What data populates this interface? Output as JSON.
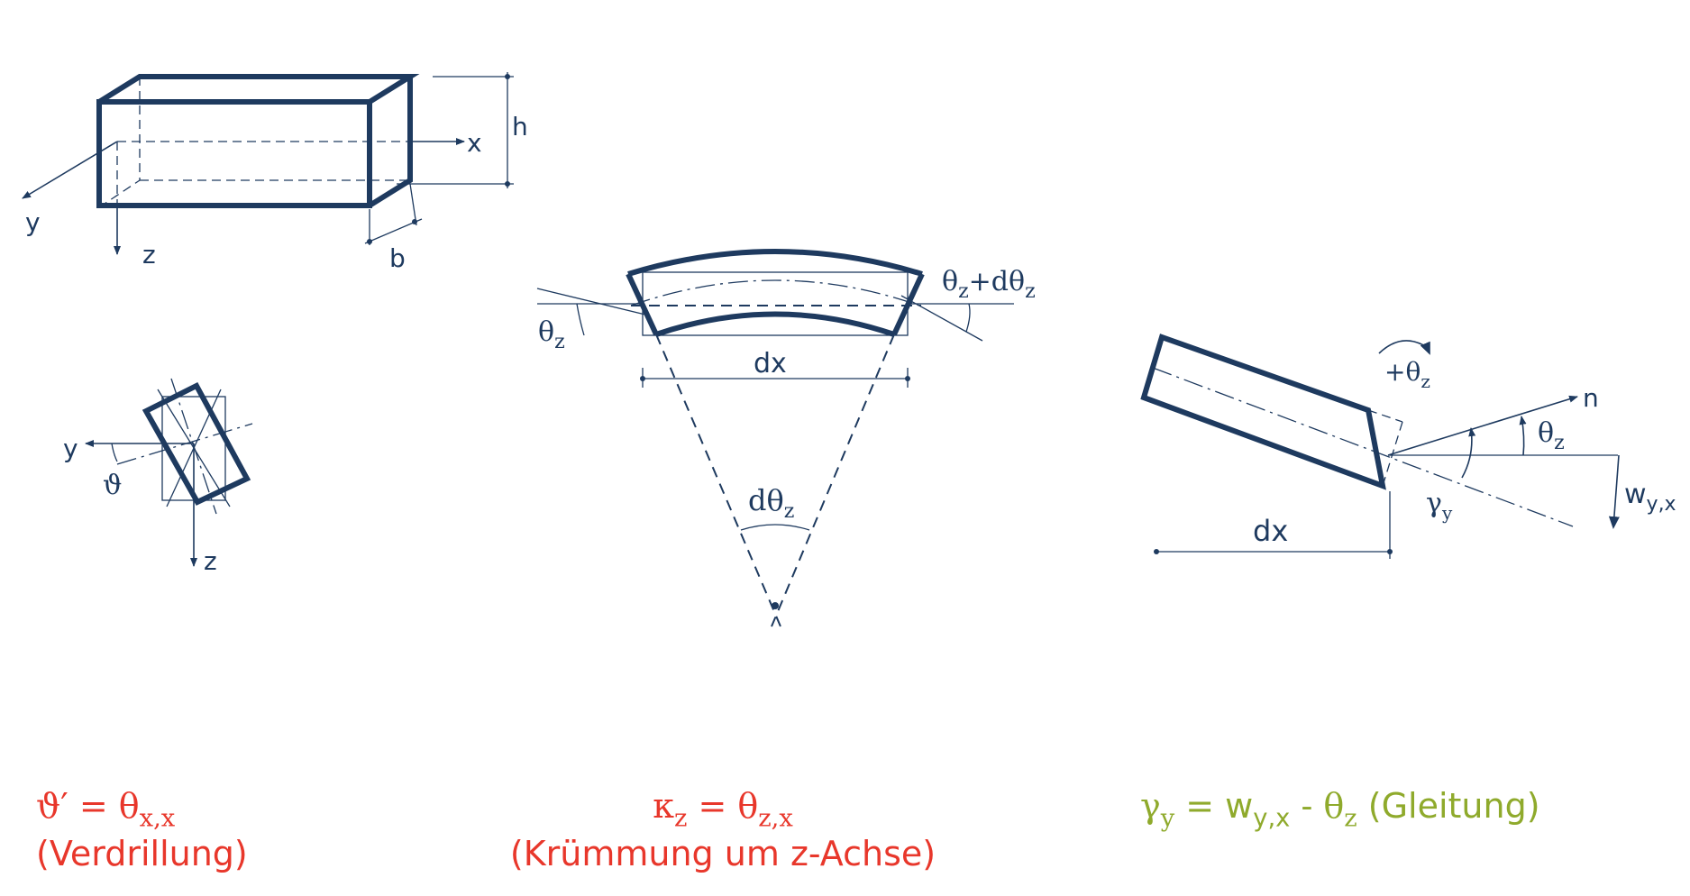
{
  "diagram_labels": {
    "beam": {
      "x": "x",
      "y": "y",
      "z": "z",
      "h": "h",
      "b": "b"
    },
    "cross_section": {
      "y": "y",
      "z": "z",
      "angle": "ϑ"
    },
    "curvature": {
      "theta_left": "θ",
      "theta_left_sub": "z",
      "theta_right": "θ",
      "theta_right_sub": "z",
      "plus": "+dθ",
      "plus_sub": "z",
      "dx": "dx",
      "dtheta": "dθ",
      "dtheta_sub": "z"
    },
    "shear": {
      "rotation": "+θ",
      "rotation_sub": "z",
      "n": "n",
      "theta": "θ",
      "theta_sub": "z",
      "gamma": "γ",
      "gamma_sub": "y",
      "w": "w",
      "w_sub": "y,x",
      "dx": "dx"
    }
  },
  "formulas": {
    "torsion": {
      "lhs": "ϑ′ = θ",
      "sub": "x,x",
      "caption": "(Verdrillung)"
    },
    "curvature": {
      "lhs": "κ",
      "lhs_sub": "z",
      "eq": " = θ",
      "sub": "z,x",
      "caption": "(Krümmung um z-Achse)"
    },
    "shear": {
      "lhs": "γ",
      "lhs_sub": "y",
      "eq": " = w",
      "sub": "y,x",
      "minus": " - θ",
      "minus_sub": "z",
      "caption": " (Gleitung)"
    }
  },
  "colors": {
    "stroke": "#1e3a5f",
    "red": "#e8372b",
    "green": "#8faa2c"
  }
}
